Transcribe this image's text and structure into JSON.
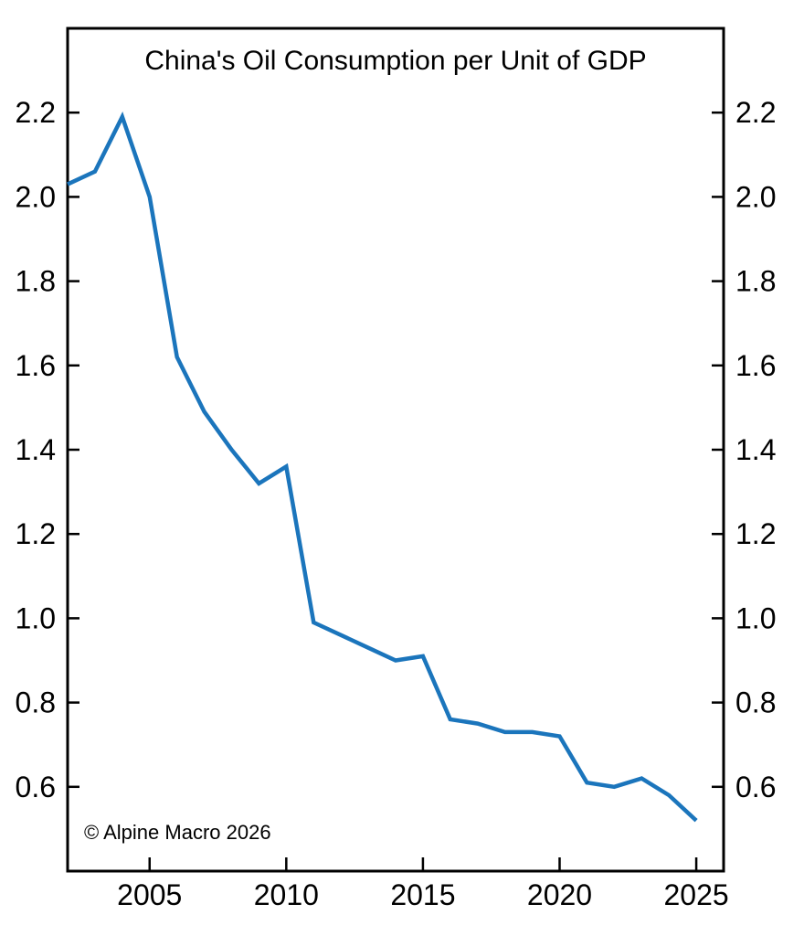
{
  "chart_data": {
    "type": "line",
    "title": "China's Oil Consumption per Unit of GDP",
    "x": [
      2002,
      2003,
      2004,
      2005,
      2006,
      2007,
      2008,
      2009,
      2010,
      2011,
      2012,
      2013,
      2014,
      2015,
      2016,
      2017,
      2018,
      2019,
      2020,
      2021,
      2022,
      2023,
      2024,
      2025
    ],
    "values": [
      2.03,
      2.06,
      2.19,
      2.0,
      1.62,
      1.49,
      1.4,
      1.32,
      1.36,
      0.99,
      0.96,
      0.93,
      0.9,
      0.91,
      0.76,
      0.75,
      0.73,
      0.73,
      0.72,
      0.61,
      0.6,
      0.62,
      0.58,
      0.52
    ],
    "xlim": [
      2002,
      2026
    ],
    "ylim": [
      0.4,
      2.4
    ],
    "x_ticks": [
      2005,
      2010,
      2015,
      2020,
      2025
    ],
    "x_tick_labels": [
      "2005",
      "2010",
      "2015",
      "2020",
      "2025"
    ],
    "y_ticks": [
      0.6,
      0.8,
      1.0,
      1.2,
      1.4,
      1.6,
      1.8,
      2.0,
      2.2
    ],
    "y_tick_labels": [
      "0.6",
      "0.8",
      "1.0",
      "1.2",
      "1.4",
      "1.6",
      "1.8",
      "2.0",
      "2.2"
    ],
    "y_axis_sides": "both",
    "grid": false,
    "legend": "none",
    "line_color": "#1b75bc",
    "axis_color": "#000000"
  },
  "annotations": {
    "copyright": "© Alpine Macro 2026"
  }
}
